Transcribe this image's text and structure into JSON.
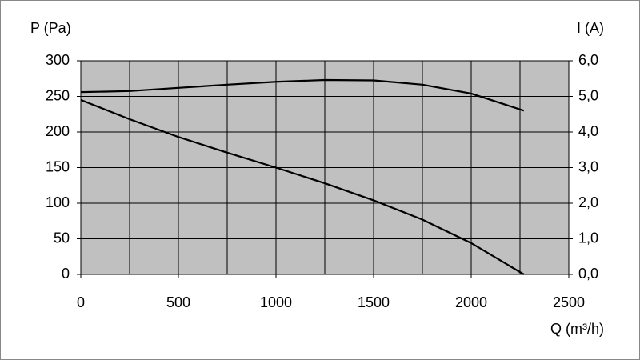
{
  "chart_data": {
    "type": "line",
    "ylabel": "P (Pa)",
    "y2label": "I (A)",
    "xlabel": "Q (m³/h)",
    "x": [
      0,
      250,
      500,
      750,
      1000,
      1250,
      1500,
      1750,
      2000,
      2270
    ],
    "series": [
      {
        "color": "#000000",
        "values": [
          245,
          218,
          193,
          171,
          150,
          128,
          104,
          77,
          44,
          0
        ]
      },
      {
        "color": "#000000",
        "axis": "y2",
        "values": [
          5.12,
          5.15,
          5.24,
          5.33,
          5.41,
          5.46,
          5.45,
          5.33,
          5.08,
          4.6
        ]
      }
    ],
    "xlim": [
      0,
      2500
    ],
    "xticks": [
      0,
      500,
      1000,
      1500,
      2000,
      2500
    ],
    "ylim": [
      0,
      300
    ],
    "yticks": [
      0,
      50,
      100,
      150,
      200,
      250,
      300
    ],
    "y2lim": [
      0,
      6
    ],
    "y2ticks": [
      {
        "value": 0,
        "label": "0,0"
      },
      {
        "value": 1,
        "label": "1,0"
      },
      {
        "value": 2,
        "label": "2,0"
      },
      {
        "value": 3,
        "label": "3,0"
      },
      {
        "value": 4,
        "label": "4,0"
      },
      {
        "value": 5,
        "label": "5,0"
      },
      {
        "value": 6,
        "label": "6,0"
      }
    ],
    "xgrid": [
      0,
      250,
      500,
      750,
      1000,
      1250,
      1500,
      1750,
      2000,
      2250,
      2500
    ],
    "grid": true,
    "plot_background": "#c0c0c0"
  }
}
